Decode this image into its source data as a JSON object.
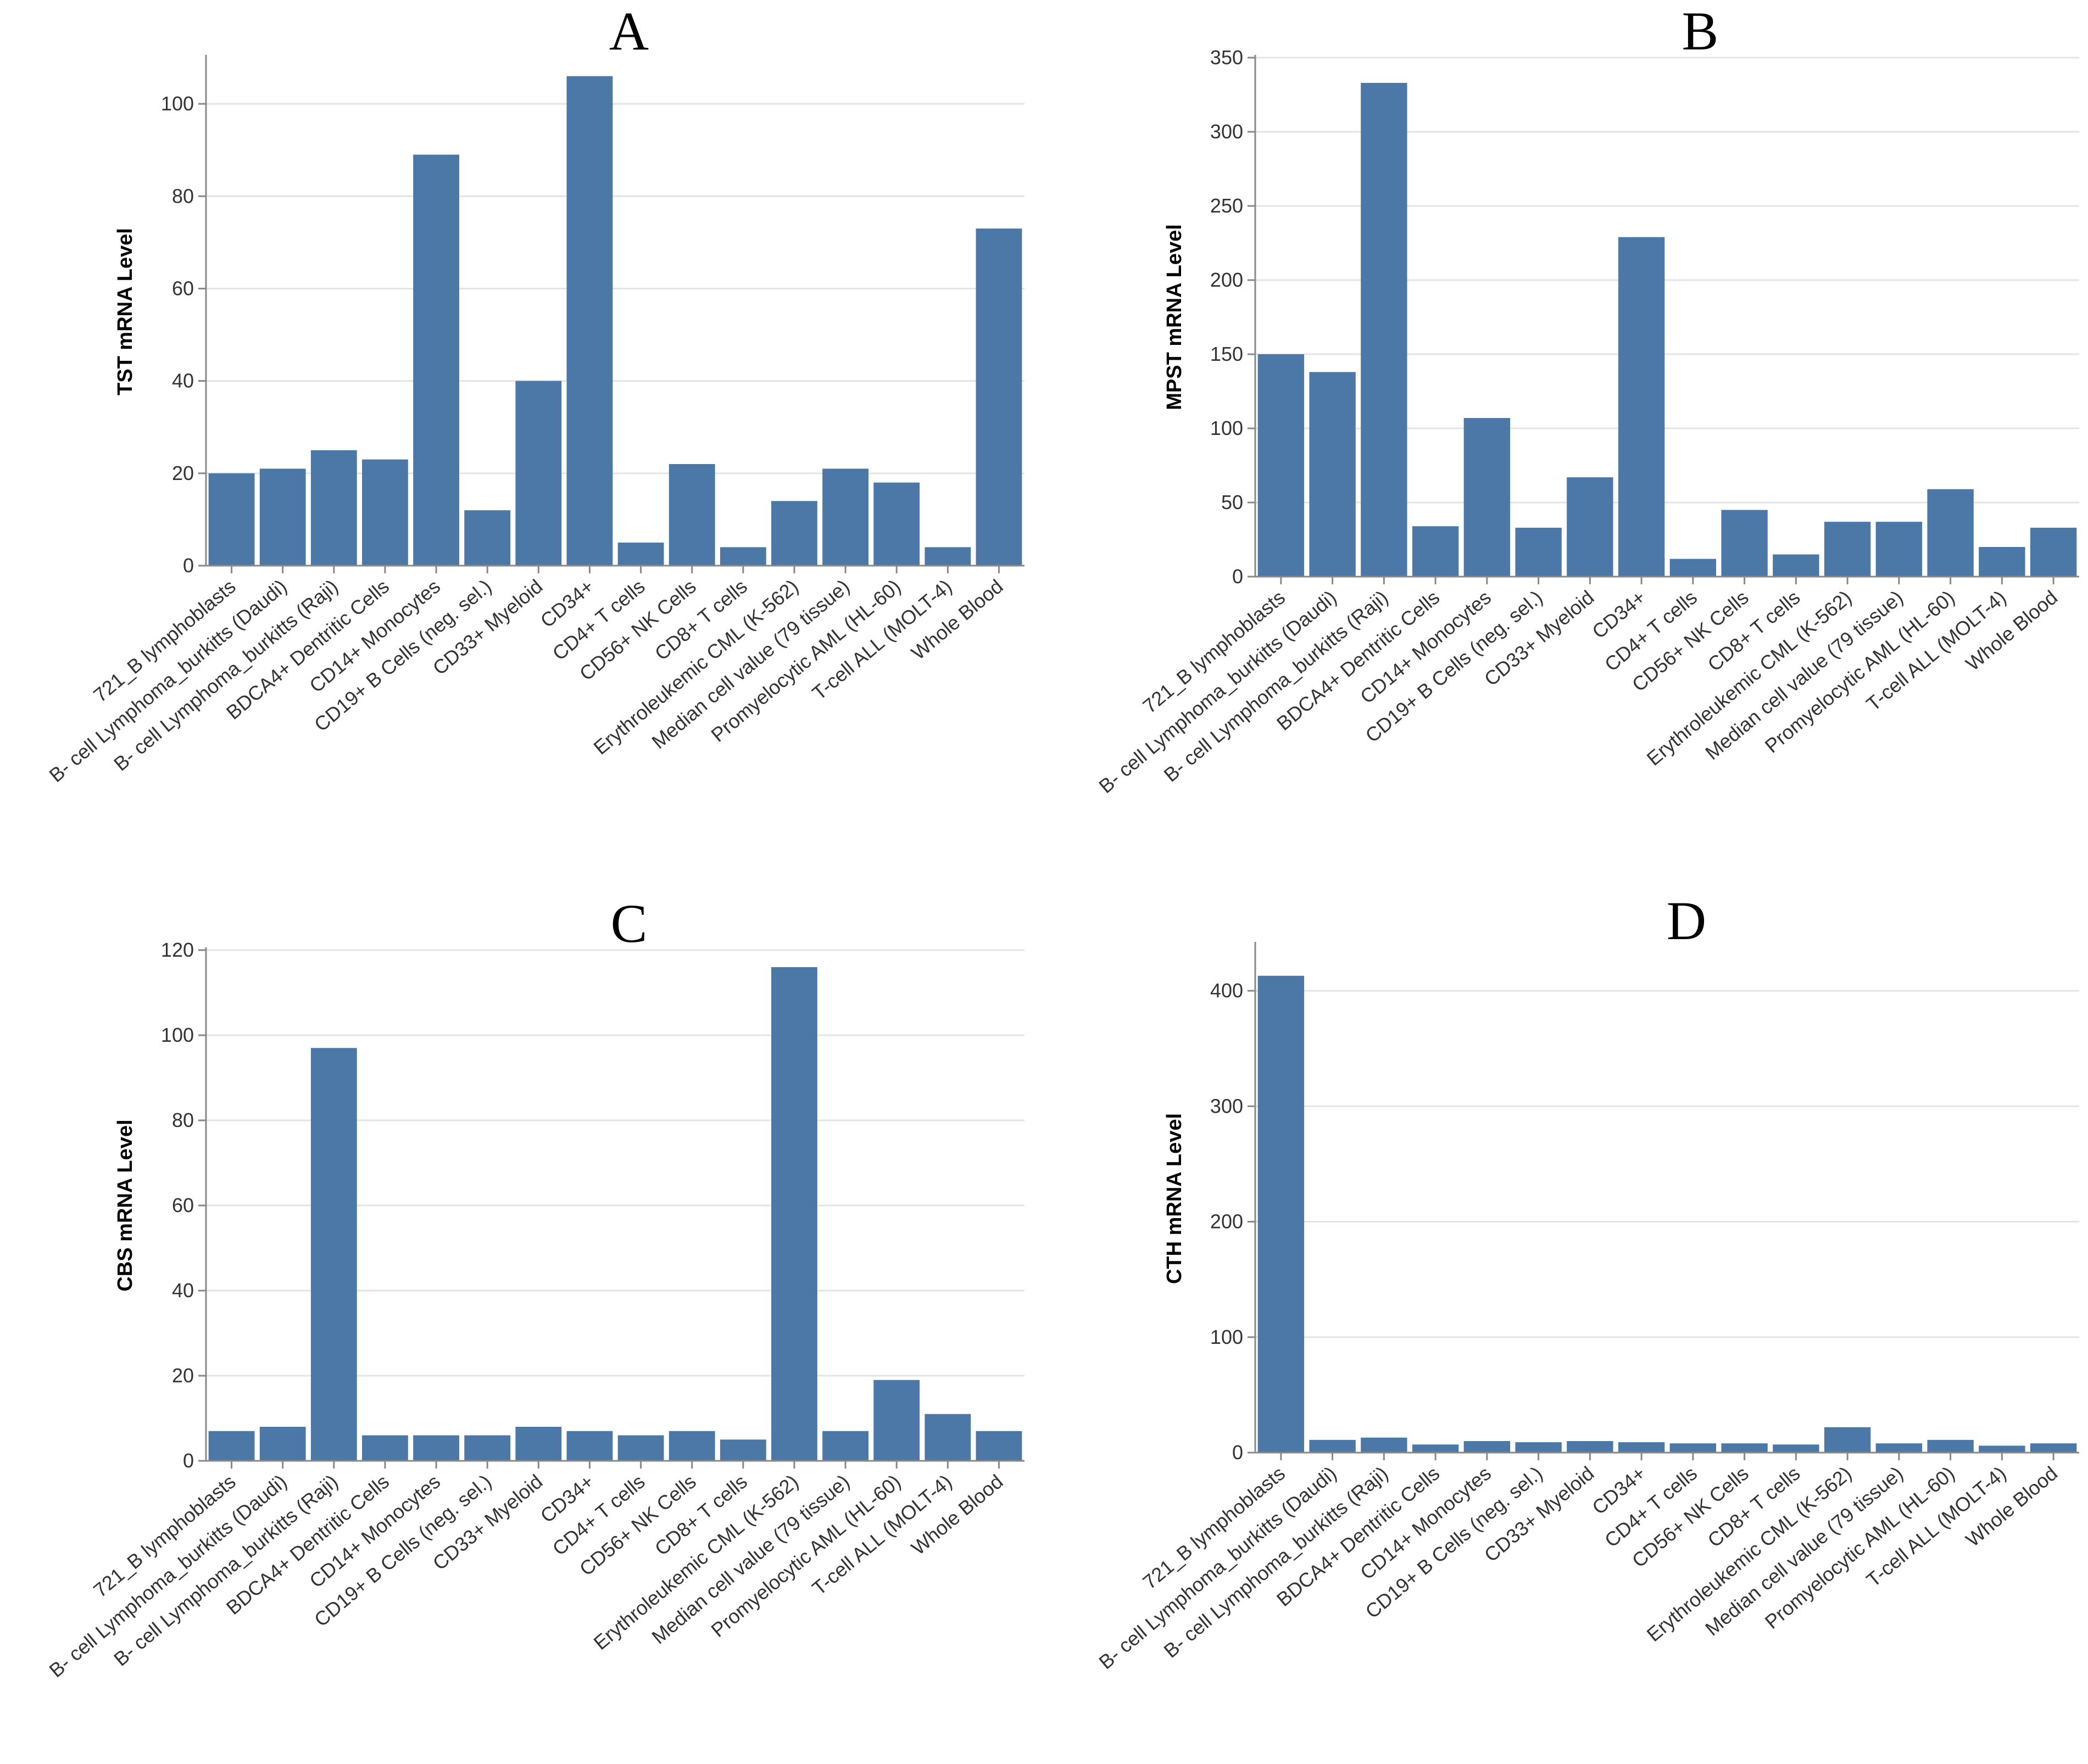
{
  "colors": {
    "bar": "#4c78a8",
    "grid": "#e4e4e4",
    "axis": "#888888",
    "text": "#333333"
  },
  "chart_data": [
    {
      "type": "bar",
      "panel": "A",
      "ylabel": "TST mRNA Level",
      "ylim": [
        0,
        110
      ],
      "yticks": [
        0,
        20,
        40,
        60,
        80,
        100
      ],
      "grid": true,
      "categories": [
        "721_B lymphoblasts",
        "B- cell Lymphoma_burkitts (Daudi)",
        "B- cell Lymphoma_burkitts (Raji)",
        "BDCA4+ Dentritic Cells",
        "CD14+ Monocytes",
        "CD19+ B Cells (neg. sel.)",
        "CD33+ Myeloid",
        "CD34+",
        "CD4+ T cells",
        "CD56+ NK Cells",
        "CD8+ T cells",
        "Erythroleukemic CML (K-562)",
        "Median cell value (79 tissue)",
        "Promyelocytic AML (HL-60)",
        "T-cell ALL (MOLT-4)",
        "Whole Blood"
      ],
      "values": [
        20,
        21,
        25,
        23,
        89,
        12,
        40,
        106,
        5,
        22,
        4,
        14,
        21,
        18,
        4,
        73
      ]
    },
    {
      "type": "bar",
      "panel": "B",
      "ylabel": "MPST mRNA Level",
      "ylim": [
        0,
        350
      ],
      "yticks": [
        0,
        50,
        100,
        150,
        200,
        250,
        300,
        350
      ],
      "grid": true,
      "categories": [
        "721_B lymphoblasts",
        "B- cell Lymphoma_burkitts (Daudi)",
        "B- cell Lymphoma_burkitts (Raji)",
        "BDCA4+ Dentritic Cells",
        "CD14+ Monocytes",
        "CD19+ B Cells (neg. sel.)",
        "CD33+ Myeloid",
        "CD34+",
        "CD4+ T cells",
        "CD56+ NK Cells",
        "CD8+ T cells",
        "Erythroleukemic CML (K-562)",
        "Median cell value (79 tissue)",
        "Promyelocytic AML (HL-60)",
        "T-cell ALL (MOLT-4)",
        "Whole Blood"
      ],
      "values": [
        150,
        138,
        333,
        34,
        107,
        33,
        67,
        229,
        12,
        45,
        15,
        37,
        37,
        59,
        20,
        33
      ]
    },
    {
      "type": "bar",
      "panel": "C",
      "ylabel": "CBS mRNA Level",
      "ylim": [
        0,
        120
      ],
      "yticks": [
        0,
        20,
        40,
        60,
        80,
        100,
        120
      ],
      "grid": true,
      "categories": [
        "721_B lymphoblasts",
        "B- cell Lymphoma_burkitts (Daudi)",
        "B- cell Lymphoma_burkitts (Raji)",
        "BDCA4+ Dentritic Cells",
        "CD14+ Monocytes",
        "CD19+ B Cells (neg. sel.)",
        "CD33+ Myeloid",
        "CD34+",
        "CD4+ T cells",
        "CD56+ NK Cells",
        "CD8+ T cells",
        "Erythroleukemic CML (K-562)",
        "Median cell value (79 tissue)",
        "Promyelocytic AML (HL-60)",
        "T-cell ALL (MOLT-4)",
        "Whole Blood"
      ],
      "values": [
        7,
        8,
        97,
        6,
        6,
        6,
        8,
        7,
        6,
        7,
        5,
        116,
        7,
        19,
        11,
        7
      ]
    },
    {
      "type": "bar",
      "panel": "D",
      "ylabel": "CTH mRNA Level",
      "ylim": [
        0,
        440
      ],
      "yticks": [
        0,
        100,
        200,
        300,
        400
      ],
      "grid": true,
      "categories": [
        "721_B lymphoblasts",
        "B- cell Lymphoma_burkitts (Daudi)",
        "B- cell Lymphoma_burkitts (Raji)",
        "BDCA4+ Dentritic Cells",
        "CD14+ Monocytes",
        "CD19+ B Cells (neg. sel.)",
        "CD33+ Myeloid",
        "CD34+",
        "CD4+ T cells",
        "CD56+ NK Cells",
        "CD8+ T cells",
        "Erythroleukemic CML (K-562)",
        "Median cell value (79 tissue)",
        "Promyelocytic AML (HL-60)",
        "T-cell ALL (MOLT-4)",
        "Whole Blood"
      ],
      "values": [
        413,
        11,
        13,
        7,
        10,
        9,
        10,
        9,
        8,
        8,
        7,
        22,
        8,
        11,
        6,
        8
      ]
    }
  ]
}
